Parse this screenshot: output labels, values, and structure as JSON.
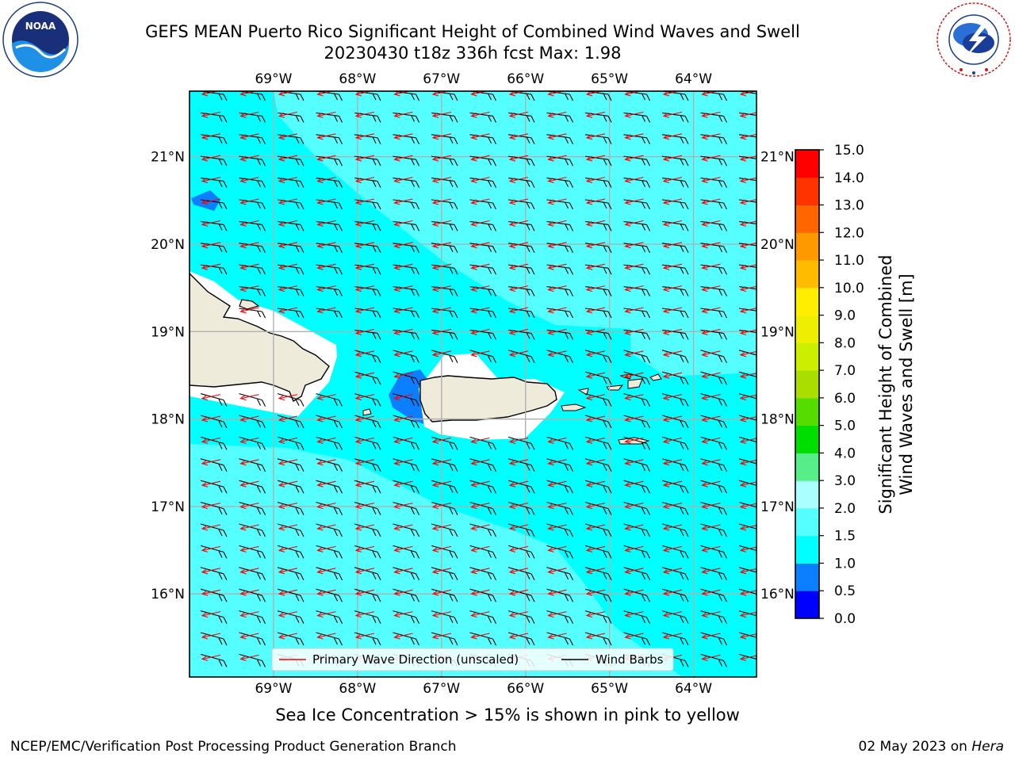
{
  "title_line1": "GEFS MEAN Puerto Rico Significant Height of Combined Wind Waves and Swell",
  "title_line2": "20230430 t18z 336h fcst   Max: 1.98",
  "footer_left": "NCEP/EMC/Verification Post Processing Product Generation Branch",
  "footer_date": "02 May 2023 on ",
  "footer_machine": "Hera",
  "sea_ice_note": "Sea Ice Concentration > 15% is shown in pink to yellow",
  "logos": {
    "noaa": {
      "text": "NOAA",
      "ring_text": "NATIONAL OCEANIC AND ATMOSPHERIC ADMINISTRATION · U.S. DEPARTMENT OF COMMERCE"
    },
    "nws": {
      "ring_text": "NATIONAL WEATHER SERVICE"
    }
  },
  "colors": {
    "sea_main": "#00ffff",
    "sea_light": "#55ffff",
    "land": "#eeebdb",
    "low_wave": "#0a7fff",
    "arrow": "#ff0000",
    "barb": "#000000"
  },
  "legend": {
    "wave_label": "Primary Wave Direction (unscaled)",
    "barb_label": "Wind Barbs"
  },
  "chart_data": {
    "type": "heatmap",
    "title": "GEFS MEAN Puerto Rico Significant Height of Combined Wind Waves and Swell",
    "subtitle": "20230430 t18z 336h fcst   Max: 1.98",
    "max_value": 1.98,
    "x_ticks": [
      "69°W",
      "68°W",
      "67°W",
      "66°W",
      "65°W",
      "64°W"
    ],
    "x_tick_values": [
      -69,
      -68,
      -67,
      -66,
      -65,
      -64
    ],
    "y_ticks": [
      "16°N",
      "17°N",
      "18°N",
      "19°N",
      "20°N",
      "21°N"
    ],
    "y_tick_values": [
      16,
      17,
      18,
      19,
      20,
      21
    ],
    "lon_range": [
      -70,
      -63.25
    ],
    "lat_range": [
      15.05,
      21.75
    ],
    "grid": true,
    "legend_placement": "bottom-center",
    "colorbar": {
      "label": "Significant Height of Combined Wind Waves and Swell [m]",
      "label_lines": [
        "Significant Height of Combined",
        "Wind Waves and Swell [m]"
      ],
      "levels": [
        0.0,
        0.5,
        1.0,
        1.5,
        2.0,
        3.0,
        4.0,
        5.0,
        6.0,
        7.0,
        8.0,
        9.0,
        10.0,
        11.0,
        12.0,
        13.0,
        14.0,
        15.0
      ],
      "tick_labels": [
        "0.0",
        "0.5",
        "1.0",
        "1.5",
        "2.0",
        "3.0",
        "4.0",
        "5.0",
        "6.0",
        "7.0",
        "8.0",
        "9.0",
        "10.0",
        "11.0",
        "12.0",
        "13.0",
        "14.0",
        "15.0"
      ],
      "colors": [
        "#0000ff",
        "#0a7fff",
        "#00ffff",
        "#55ffff",
        "#aaffff",
        "#55ee88",
        "#00dd00",
        "#55dd00",
        "#aadd00",
        "#ccee00",
        "#eeee00",
        "#ffee00",
        "#ffbb00",
        "#ff9900",
        "#ff6600",
        "#ff3300",
        "#ff0000"
      ]
    },
    "field": {
      "dominant_range_m": "1.0–1.5",
      "light_band_range_m": "1.5–2.0",
      "low_pockets_range_m": "0.5–1.0"
    },
    "wind_barbs_direction": "easterly",
    "wave_direction": "from east-southeast"
  }
}
